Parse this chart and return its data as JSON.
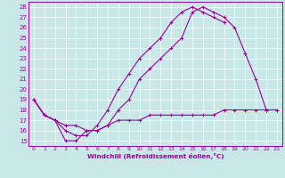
{
  "xlabel": "Windchill (Refroidissement éolien,°C)",
  "bg_color": "#c8e8e8",
  "line_color": "#990099",
  "grid_color": "#ffffff",
  "x_ticks": [
    0,
    1,
    2,
    3,
    4,
    5,
    6,
    7,
    8,
    9,
    10,
    11,
    12,
    13,
    14,
    15,
    16,
    17,
    18,
    19,
    20,
    21,
    22,
    23
  ],
  "y_ticks": [
    15,
    16,
    17,
    18,
    19,
    20,
    21,
    22,
    23,
    24,
    25,
    26,
    27,
    28
  ],
  "xlim": [
    -0.5,
    23.5
  ],
  "ylim": [
    14.5,
    28.5
  ],
  "line1_x": [
    0,
    1,
    2,
    3,
    4,
    5,
    6,
    7,
    8,
    9,
    10,
    11,
    12,
    13,
    14,
    15,
    16,
    17,
    18
  ],
  "line1_y": [
    19,
    17.5,
    17,
    16,
    15.5,
    15.5,
    16.5,
    18,
    20,
    21.5,
    23,
    24,
    25,
    26.5,
    27.5,
    28,
    27.5,
    27,
    26.5
  ],
  "line2_x": [
    0,
    1,
    2,
    3,
    4,
    5,
    6,
    7,
    8,
    9,
    10,
    11,
    12,
    13,
    14,
    15,
    16,
    17,
    18,
    19,
    20,
    21,
    22,
    23
  ],
  "line2_y": [
    19,
    17.5,
    17,
    15,
    15,
    16,
    16,
    16.5,
    18,
    19,
    21,
    22,
    23,
    24,
    25,
    27.5,
    28,
    27.5,
    27,
    26,
    23.5,
    21,
    18,
    18
  ],
  "line3_x": [
    0,
    1,
    2,
    3,
    4,
    5,
    6,
    7,
    8,
    9,
    10,
    11,
    12,
    13,
    14,
    15,
    16,
    17,
    18,
    19,
    20,
    21,
    22,
    23
  ],
  "line3_y": [
    19,
    17.5,
    17,
    16.5,
    16.5,
    16,
    16,
    16.5,
    17,
    17,
    17,
    17.5,
    17.5,
    17.5,
    17.5,
    17.5,
    17.5,
    17.5,
    18,
    18,
    18,
    18,
    18,
    18
  ]
}
